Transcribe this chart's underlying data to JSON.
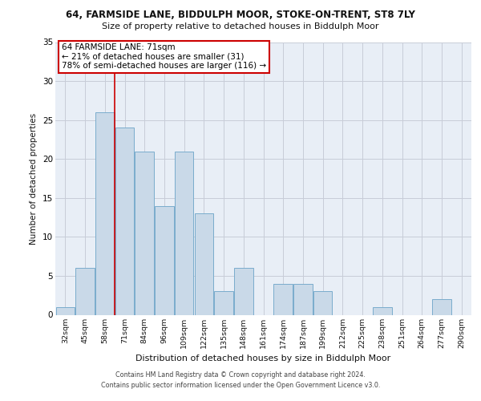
{
  "title_line1": "64, FARMSIDE LANE, BIDDULPH MOOR, STOKE-ON-TRENT, ST8 7LY",
  "title_line2": "Size of property relative to detached houses in Biddulph Moor",
  "xlabel": "Distribution of detached houses by size in Biddulph Moor",
  "ylabel": "Number of detached properties",
  "categories": [
    "32sqm",
    "45sqm",
    "58sqm",
    "71sqm",
    "84sqm",
    "96sqm",
    "109sqm",
    "122sqm",
    "135sqm",
    "148sqm",
    "161sqm",
    "174sqm",
    "187sqm",
    "199sqm",
    "212sqm",
    "225sqm",
    "238sqm",
    "251sqm",
    "264sqm",
    "277sqm",
    "290sqm"
  ],
  "values": [
    1,
    6,
    26,
    24,
    21,
    14,
    21,
    13,
    3,
    6,
    0,
    4,
    4,
    3,
    0,
    0,
    1,
    0,
    0,
    2,
    0
  ],
  "bar_color": "#c9d9e8",
  "bar_edge_color": "#7aaccc",
  "red_line_x": 2.5,
  "annotation_title": "64 FARMSIDE LANE: 71sqm",
  "annotation_line1": "← 21% of detached houses are smaller (31)",
  "annotation_line2": "78% of semi-detached houses are larger (116) →",
  "annotation_box_color": "#ffffff",
  "annotation_box_edge": "#cc0000",
  "red_line_color": "#cc0000",
  "ylim": [
    0,
    35
  ],
  "yticks": [
    0,
    5,
    10,
    15,
    20,
    25,
    30,
    35
  ],
  "bg_color": "#e8eef6",
  "grid_color": "#c8ccd8",
  "footer_line1": "Contains HM Land Registry data © Crown copyright and database right 2024.",
  "footer_line2": "Contains public sector information licensed under the Open Government Licence v3.0."
}
